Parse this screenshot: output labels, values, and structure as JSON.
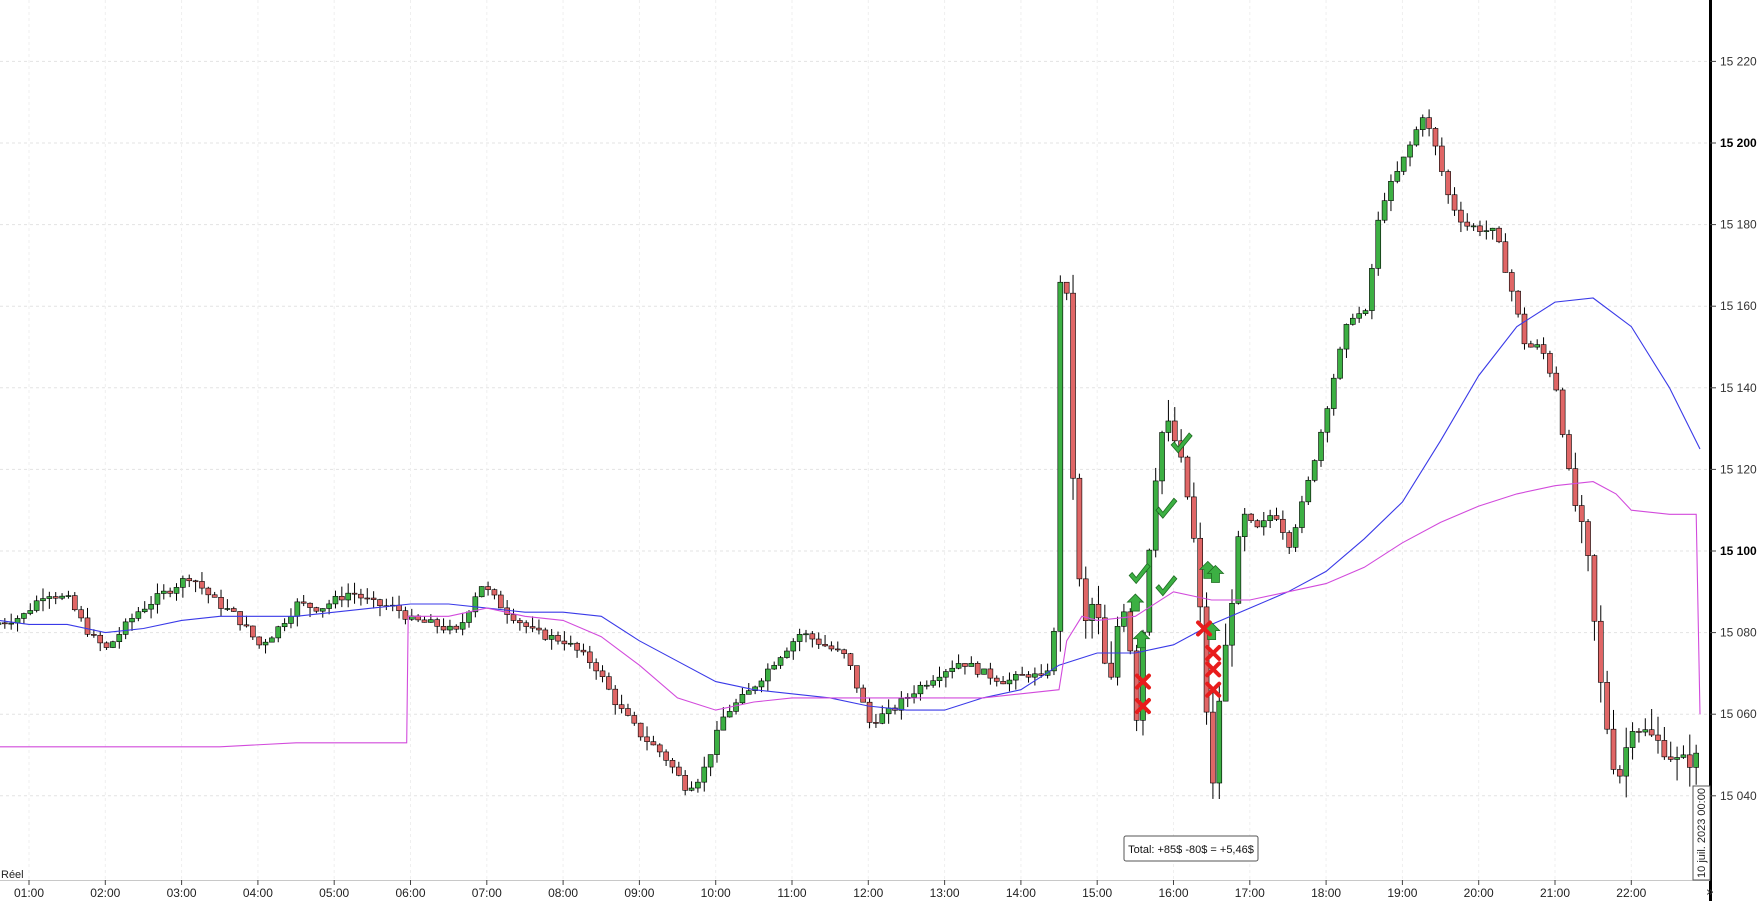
{
  "labels": {
    "mode": "Réel",
    "total": "Total: +85$ -80$ = +5,46$",
    "date": "10 juil. 2023 00:00",
    "scroll": "»"
  },
  "colors": {
    "background": "#ffffff",
    "up_candle": "#3cb043",
    "down_candle": "#e06666",
    "wick": "#000000",
    "ma_blue": "#3a3ae8",
    "ma_magenta": "#d24bdc",
    "win_marker": "#3cb043",
    "loss_marker": "#e81c1c",
    "grid": "#e3e3e3"
  },
  "chart_data": {
    "type": "candlestick",
    "x_axis": {
      "ticks": [
        "01:00",
        "02:00",
        "03:00",
        "04:00",
        "05:00",
        "06:00",
        "07:00",
        "08:00",
        "09:00",
        "10:00",
        "11:00",
        "12:00",
        "13:00",
        "14:00",
        "15:00",
        "16:00",
        "17:00",
        "18:00",
        "19:00",
        "20:00",
        "21:00",
        "22:00"
      ],
      "start_hour": 0.6,
      "end_hour": 22.9
    },
    "y_axis": {
      "range": [
        15028,
        15242
      ],
      "ticks": [
        {
          "value": 15220,
          "label": "15 220",
          "major": false
        },
        {
          "value": 15200,
          "label": "15 200",
          "major": true
        },
        {
          "value": 15180,
          "label": "15 180",
          "major": false
        },
        {
          "value": 15160,
          "label": "15 160",
          "major": false
        },
        {
          "value": 15140,
          "label": "15 140",
          "major": false
        },
        {
          "value": 15120,
          "label": "15 120",
          "major": false
        },
        {
          "value": 15100,
          "label": "15 100",
          "major": true
        },
        {
          "value": 15080,
          "label": "15 080",
          "major": false
        },
        {
          "value": 15060,
          "label": "15 060",
          "major": false
        },
        {
          "value": 15040,
          "label": "15 040",
          "major": false
        }
      ]
    },
    "price_path": [
      [
        0.6,
        15082
      ],
      [
        1.0,
        15084
      ],
      [
        1.3,
        15090
      ],
      [
        1.6,
        15088
      ],
      [
        1.9,
        15079
      ],
      [
        2.1,
        15076
      ],
      [
        2.5,
        15085
      ],
      [
        2.8,
        15089
      ],
      [
        3.2,
        15094
      ],
      [
        3.5,
        15088
      ],
      [
        3.8,
        15084
      ],
      [
        4.1,
        15077
      ],
      [
        4.3,
        15080
      ],
      [
        4.6,
        15087
      ],
      [
        4.9,
        15086
      ],
      [
        5.3,
        15090
      ],
      [
        5.6,
        15087
      ],
      [
        5.9,
        15086
      ],
      [
        6.1,
        15083
      ],
      [
        6.4,
        15082
      ],
      [
        6.7,
        15080
      ],
      [
        7.0,
        15092
      ],
      [
        7.3,
        15086
      ],
      [
        7.7,
        15080
      ],
      [
        8.1,
        15078
      ],
      [
        8.5,
        15072
      ],
      [
        8.8,
        15062
      ],
      [
        9.1,
        15055
      ],
      [
        9.4,
        15050
      ],
      [
        9.7,
        15042
      ],
      [
        9.9,
        15045
      ],
      [
        10.2,
        15060
      ],
      [
        10.5,
        15065
      ],
      [
        10.9,
        15074
      ],
      [
        11.2,
        15080
      ],
      [
        11.5,
        15077
      ],
      [
        11.8,
        15074
      ],
      [
        12.1,
        15058
      ],
      [
        12.4,
        15061
      ],
      [
        12.7,
        15066
      ],
      [
        13.0,
        15070
      ],
      [
        13.3,
        15073
      ],
      [
        13.6,
        15070
      ],
      [
        13.9,
        15068
      ],
      [
        14.2,
        15070
      ],
      [
        14.4,
        15068
      ],
      [
        14.55,
        15083
      ],
      [
        14.6,
        15167
      ],
      [
        14.7,
        15160
      ],
      [
        14.8,
        15098
      ],
      [
        14.95,
        15080
      ],
      [
        15.05,
        15090
      ],
      [
        15.15,
        15075
      ],
      [
        15.25,
        15065
      ],
      [
        15.4,
        15090
      ],
      [
        15.5,
        15080
      ],
      [
        15.6,
        15060
      ],
      [
        15.7,
        15085
      ],
      [
        15.8,
        15110
      ],
      [
        15.9,
        15128
      ],
      [
        16.0,
        15131
      ],
      [
        16.1,
        15127
      ],
      [
        16.2,
        15120
      ],
      [
        16.3,
        15110
      ],
      [
        16.4,
        15095
      ],
      [
        16.5,
        15065
      ],
      [
        16.6,
        15042
      ],
      [
        16.7,
        15068
      ],
      [
        16.8,
        15080
      ],
      [
        16.9,
        15098
      ],
      [
        17.0,
        15108
      ],
      [
        17.2,
        15105
      ],
      [
        17.4,
        15110
      ],
      [
        17.6,
        15102
      ],
      [
        17.8,
        15113
      ],
      [
        18.0,
        15128
      ],
      [
        18.2,
        15144
      ],
      [
        18.4,
        15158
      ],
      [
        18.6,
        15158
      ],
      [
        18.8,
        15185
      ],
      [
        19.0,
        15192
      ],
      [
        19.2,
        15200
      ],
      [
        19.35,
        15207
      ],
      [
        19.5,
        15200
      ],
      [
        19.7,
        15186
      ],
      [
        19.9,
        15180
      ],
      [
        20.1,
        15179
      ],
      [
        20.3,
        15178
      ],
      [
        20.5,
        15165
      ],
      [
        20.7,
        15150
      ],
      [
        20.9,
        15150
      ],
      [
        21.1,
        15140
      ],
      [
        21.3,
        15115
      ],
      [
        21.5,
        15100
      ],
      [
        21.7,
        15064
      ],
      [
        21.9,
        15043
      ],
      [
        22.1,
        15058
      ],
      [
        22.3,
        15055
      ],
      [
        22.5,
        15052
      ],
      [
        22.7,
        15048
      ],
      [
        22.9,
        15049
      ]
    ],
    "moving_averages": [
      {
        "color": "blue",
        "points": [
          [
            0.6,
            15083
          ],
          [
            1.0,
            15082
          ],
          [
            1.5,
            15082
          ],
          [
            2.0,
            15080
          ],
          [
            2.5,
            15081
          ],
          [
            3.0,
            15083
          ],
          [
            3.5,
            15084
          ],
          [
            4.0,
            15084
          ],
          [
            4.5,
            15084
          ],
          [
            5.0,
            15085
          ],
          [
            5.5,
            15086
          ],
          [
            6.0,
            15087
          ],
          [
            6.5,
            15087
          ],
          [
            7.0,
            15086
          ],
          [
            7.5,
            15085
          ],
          [
            8.0,
            15085
          ],
          [
            8.5,
            15084
          ],
          [
            9.0,
            15078
          ],
          [
            9.5,
            15073
          ],
          [
            10.0,
            15068
          ],
          [
            10.5,
            15066
          ],
          [
            11.0,
            15065
          ],
          [
            11.5,
            15064
          ],
          [
            12.0,
            15062
          ],
          [
            12.5,
            15061
          ],
          [
            13.0,
            15061
          ],
          [
            13.5,
            15064
          ],
          [
            14.0,
            15066
          ],
          [
            14.5,
            15072
          ],
          [
            15.0,
            15075
          ],
          [
            15.5,
            15075
          ],
          [
            16.0,
            15077
          ],
          [
            16.5,
            15082
          ],
          [
            17.0,
            15086
          ],
          [
            17.5,
            15090
          ],
          [
            18.0,
            15095
          ],
          [
            18.5,
            15103
          ],
          [
            19.0,
            15112
          ],
          [
            19.5,
            15127
          ],
          [
            20.0,
            15143
          ],
          [
            20.5,
            15155
          ],
          [
            21.0,
            15161
          ],
          [
            21.5,
            15162
          ],
          [
            22.0,
            15155
          ],
          [
            22.5,
            15140
          ],
          [
            22.9,
            15125
          ]
        ]
      },
      {
        "color": "magenta",
        "points": [
          [
            0.6,
            15052
          ],
          [
            1.5,
            15052
          ],
          [
            2.5,
            15052
          ],
          [
            3.5,
            15052
          ],
          [
            4.5,
            15053
          ],
          [
            5.5,
            15053
          ],
          [
            5.95,
            15053
          ],
          [
            5.97,
            15084
          ],
          [
            6.5,
            15084
          ],
          [
            7.0,
            15086
          ],
          [
            7.5,
            15084
          ],
          [
            8.0,
            15083
          ],
          [
            8.5,
            15079
          ],
          [
            9.0,
            15072
          ],
          [
            9.5,
            15064
          ],
          [
            10.0,
            15061
          ],
          [
            10.5,
            15063
          ],
          [
            11.0,
            15064
          ],
          [
            11.5,
            15064
          ],
          [
            12.0,
            15064
          ],
          [
            12.5,
            15064
          ],
          [
            13.0,
            15064
          ],
          [
            13.5,
            15064
          ],
          [
            14.0,
            15065
          ],
          [
            14.5,
            15066
          ],
          [
            14.6,
            15078
          ],
          [
            14.8,
            15084
          ],
          [
            15.0,
            15083
          ],
          [
            15.5,
            15084
          ],
          [
            16.0,
            15090
          ],
          [
            16.5,
            15088
          ],
          [
            17.0,
            15088
          ],
          [
            17.5,
            15090
          ],
          [
            18.0,
            15092
          ],
          [
            18.5,
            15096
          ],
          [
            19.0,
            15102
          ],
          [
            19.5,
            15107
          ],
          [
            20.0,
            15111
          ],
          [
            20.5,
            15114
          ],
          [
            21.0,
            15116
          ],
          [
            21.5,
            15117
          ],
          [
            21.8,
            15114
          ],
          [
            22.0,
            15110
          ],
          [
            22.5,
            15109
          ],
          [
            22.85,
            15109
          ],
          [
            22.9,
            15060
          ]
        ]
      }
    ],
    "markers": [
      {
        "type": "win",
        "time": 15.55,
        "price": 15094
      },
      {
        "type": "win",
        "time": 15.9,
        "price": 15110
      },
      {
        "type": "win",
        "time": 16.1,
        "price": 15126
      },
      {
        "type": "win",
        "time": 15.9,
        "price": 15091
      },
      {
        "type": "buy",
        "time": 15.5,
        "price": 15087
      },
      {
        "type": "buy",
        "time": 15.58,
        "price": 15078
      },
      {
        "type": "buy",
        "time": 16.45,
        "price": 15095
      },
      {
        "type": "buy",
        "time": 16.55,
        "price": 15094
      },
      {
        "type": "buy",
        "time": 16.5,
        "price": 15080
      },
      {
        "type": "loss",
        "time": 15.6,
        "price": 15068
      },
      {
        "type": "loss",
        "time": 15.6,
        "price": 15062
      },
      {
        "type": "loss",
        "time": 16.4,
        "price": 15081
      },
      {
        "type": "loss",
        "time": 16.52,
        "price": 15075
      },
      {
        "type": "loss",
        "time": 16.52,
        "price": 15071
      },
      {
        "type": "loss",
        "time": 16.52,
        "price": 15066
      }
    ]
  }
}
